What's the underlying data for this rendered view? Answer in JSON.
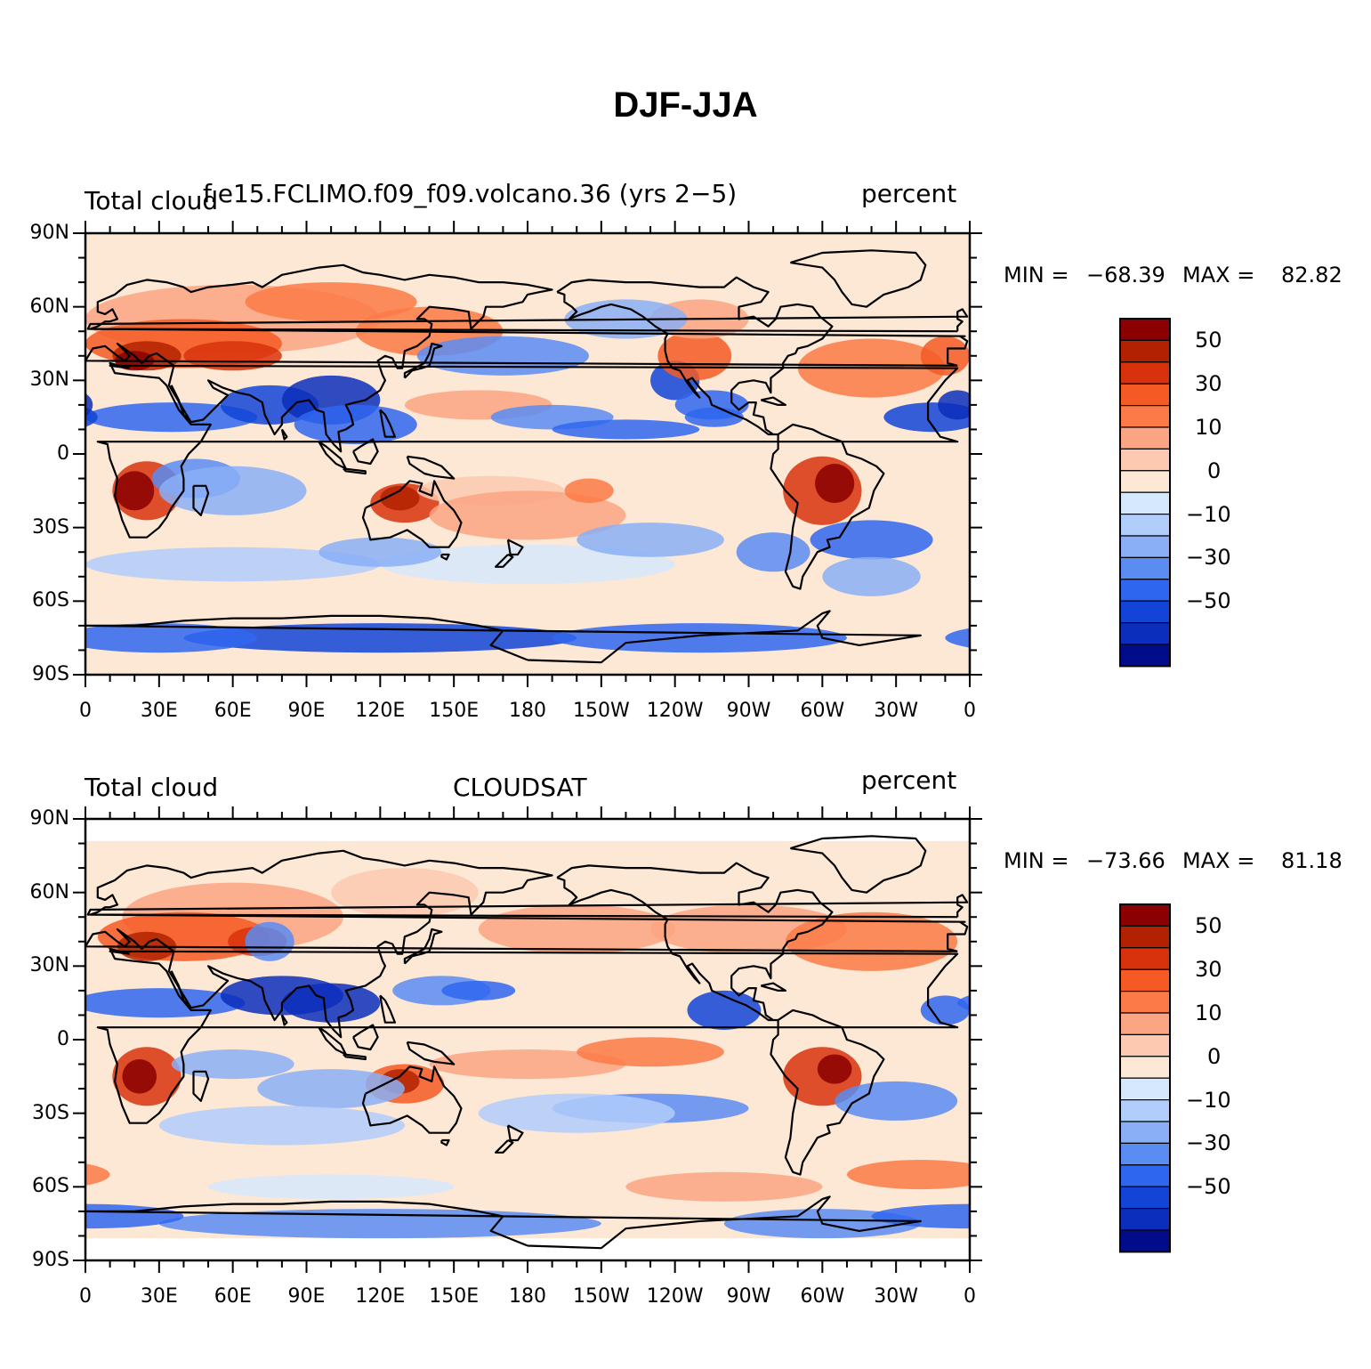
{
  "title": "DJF-JJA",
  "panels": [
    {
      "left_label": "Total cloud",
      "center_label": "f.e15.FCLIMO.f09_f09.volcano.36 (yrs 2−5)",
      "right_label": "percent",
      "min_label": "MIN =",
      "min_value": "−68.39",
      "max_label": "MAX =",
      "max_value": "82.82"
    },
    {
      "left_label": "Total cloud",
      "center_label": "CLOUDSAT",
      "right_label": "percent",
      "min_label": "MIN =",
      "min_value": "−73.66",
      "max_label": "MAX =",
      "max_value": "81.18"
    }
  ],
  "axes": {
    "lat_labels": [
      "90N",
      "60N",
      "30N",
      "0",
      "30S",
      "60S",
      "90S"
    ],
    "lon_labels": [
      "0",
      "30E",
      "60E",
      "90E",
      "120E",
      "150E",
      "180",
      "150W",
      "120W",
      "90W",
      "60W",
      "30W",
      "0"
    ]
  },
  "colorbar": {
    "colors": [
      "#8b0000",
      "#b22200",
      "#d8320d",
      "#f55a25",
      "#fb7a47",
      "#fca583",
      "#fdc9b0",
      "#fde7d5",
      "#d6e8fb",
      "#b1cdfb",
      "#8aaff6",
      "#5b8cf2",
      "#2f66f0",
      "#1244d7",
      "#0c2ebc",
      "#000c8a"
    ],
    "labels": [
      "50",
      "30",
      "10",
      "0",
      "−10",
      "−30",
      "−50"
    ]
  }
}
